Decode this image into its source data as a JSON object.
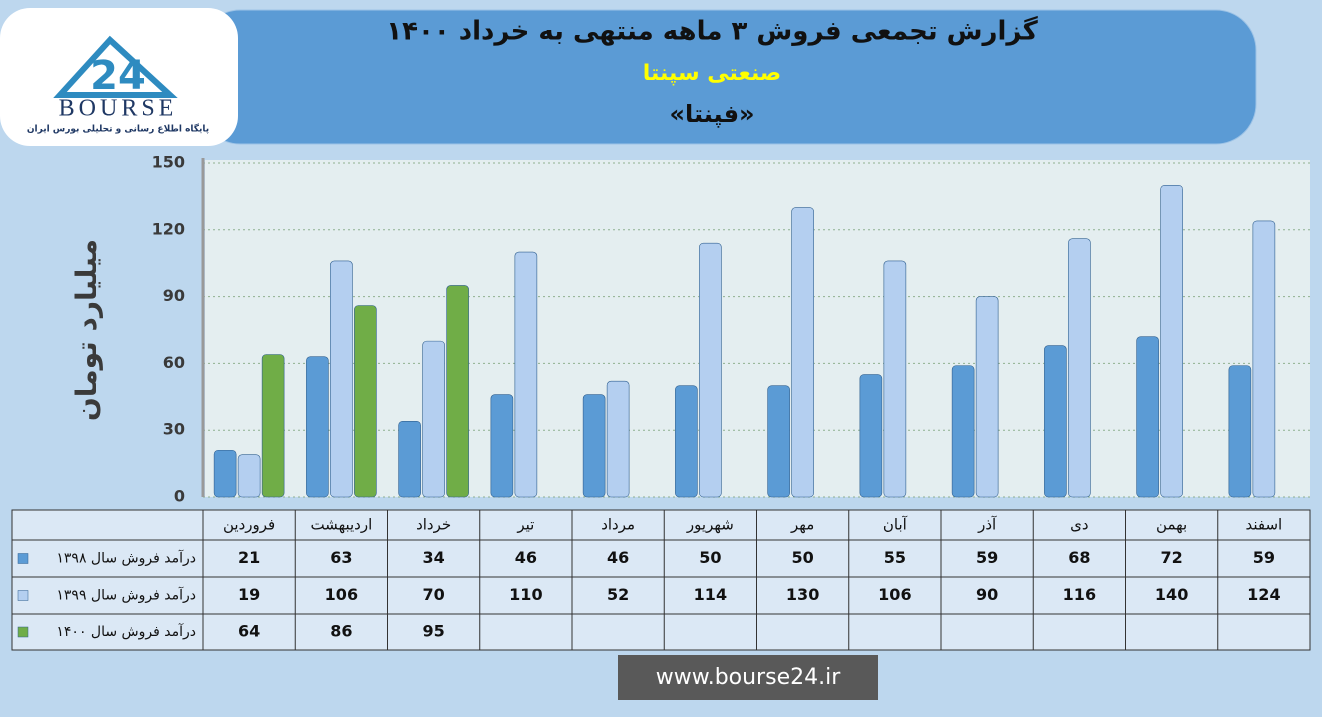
{
  "logo": {
    "mark": "24",
    "name": "BOURSE",
    "tagline": "پایگاه اطلاع رسانی و تحلیلی بورس ایران"
  },
  "chart_data": {
    "type": "bar",
    "title": "گزارش تجمعی فروش ۳ ماهه منتهی به خرداد ۱۴۰۰",
    "subtitle": "صنعتی سپنتا",
    "symbol": "«فپنتا»",
    "y_label": "میلیارد تومان",
    "categories": [
      "فروردین",
      "اردیبهشت",
      "خرداد",
      "تیر",
      "مرداد",
      "شهریور",
      "مهر",
      "آبان",
      "آذر",
      "دی",
      "بهمن",
      "اسفند"
    ],
    "series": [
      {
        "name": "درآمد فروش سال ۱۳۹۸",
        "color": "#5b9bd5",
        "values": [
          21,
          63,
          34,
          46,
          46,
          50,
          50,
          55,
          59,
          68,
          72,
          59
        ]
      },
      {
        "name": "درآمد فروش سال ۱۳۹۹",
        "color": "#b4cff0",
        "values": [
          19,
          106,
          70,
          110,
          52,
          114,
          130,
          106,
          90,
          116,
          140,
          124
        ]
      },
      {
        "name": "درآمد فروش سال ۱۴۰۰",
        "color": "#70ad47",
        "values": [
          64,
          86,
          95,
          null,
          null,
          null,
          null,
          null,
          null,
          null,
          null,
          null
        ]
      }
    ],
    "ylim": [
      0,
      150
    ],
    "yticks": [
      0,
      30,
      60,
      90,
      120,
      150
    ],
    "grid": true
  },
  "footer": "www.bourse24.ir"
}
